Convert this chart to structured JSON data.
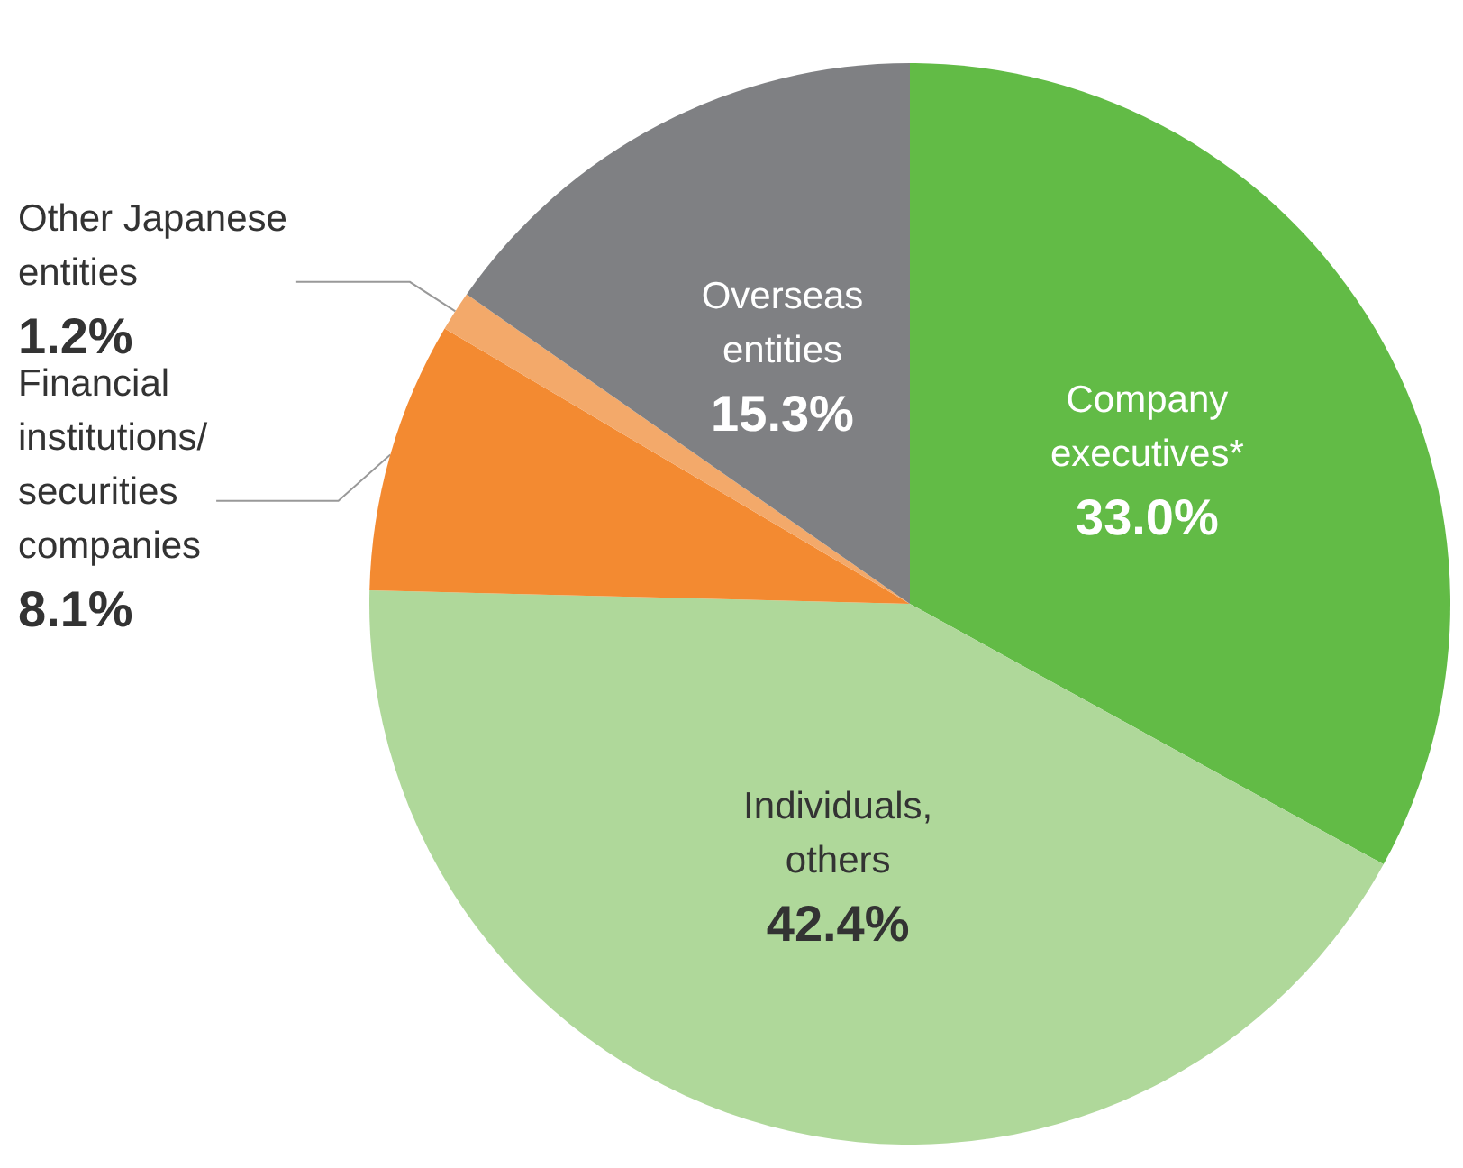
{
  "chart_data": {
    "type": "pie",
    "categories": [
      "Company executives*",
      "Individuals, others",
      "Financial institutions/ securities companies",
      "Other Japanese entities",
      "Overseas entities"
    ],
    "values": [
      33.0,
      42.4,
      8.1,
      1.2,
      15.3
    ],
    "colors": [
      "#62bb46",
      "#afd89a",
      "#f38a31",
      "#f3a96a",
      "#7f8083"
    ],
    "value_labels": [
      "33.0%",
      "42.4%",
      "8.1%",
      "1.2%",
      "15.3%"
    ],
    "legend": false
  }
}
